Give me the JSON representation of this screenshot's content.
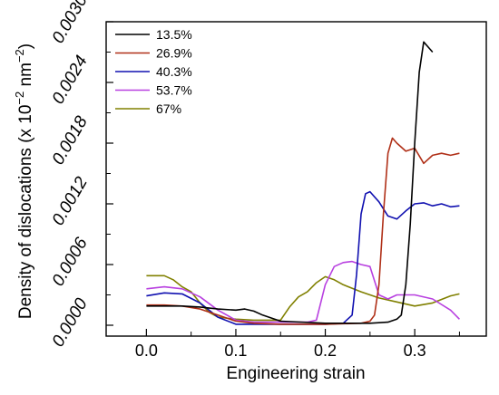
{
  "chart_data": {
    "type": "line",
    "title": "",
    "xlabel": "Engineering strain",
    "ylabel_main": "Density of dislocations (x 10",
    "ylabel_sup1": "−2",
    "ylabel_mid": " nm",
    "ylabel_sup2": "−2",
    "ylabel_end": ")",
    "xlim": [
      -0.045,
      0.38
    ],
    "ylim": [
      0.0,
      0.003
    ],
    "xticks": [
      0.0,
      0.1,
      0.2,
      0.3
    ],
    "xtick_labels": [
      "0.0",
      "0.1",
      "0.2",
      "0.3"
    ],
    "yticks": [
      0.0,
      0.0006,
      0.0012,
      0.0018,
      0.0024,
      0.003
    ],
    "ytick_labels": [
      "0.0000",
      "0.0006",
      "0.0012",
      "0.0018",
      "0.0024",
      "0.0030"
    ],
    "legend_position": "top-left",
    "grid": false,
    "series": [
      {
        "name": "13.5%",
        "color": "#000000",
        "x": [
          0.0,
          0.02,
          0.04,
          0.06,
          0.08,
          0.1,
          0.11,
          0.12,
          0.13,
          0.15,
          0.2,
          0.25,
          0.27,
          0.28,
          0.285,
          0.29,
          0.295,
          0.3,
          0.305,
          0.31,
          0.315,
          0.32
        ],
        "y": [
          0.00019,
          0.00019,
          0.00019,
          0.00018,
          0.00016,
          0.00015,
          0.00016,
          0.00014,
          0.0001,
          4e-05,
          2e-05,
          2e-05,
          3e-05,
          6e-05,
          0.0001,
          0.0004,
          0.001,
          0.0018,
          0.0025,
          0.0028,
          0.00275,
          0.0027
        ]
      },
      {
        "name": "26.9%",
        "color": "#b03018",
        "x": [
          0.0,
          0.02,
          0.04,
          0.06,
          0.08,
          0.1,
          0.12,
          0.15,
          0.2,
          0.24,
          0.25,
          0.255,
          0.26,
          0.265,
          0.27,
          0.275,
          0.28,
          0.29,
          0.3,
          0.31,
          0.32,
          0.33,
          0.34,
          0.35
        ],
        "y": [
          0.0002,
          0.0002,
          0.00019,
          0.00016,
          0.0001,
          4e-05,
          2e-05,
          1e-05,
          1e-05,
          2e-05,
          4e-05,
          0.0001,
          0.0004,
          0.0011,
          0.0017,
          0.00185,
          0.0018,
          0.00172,
          0.00175,
          0.0016,
          0.00168,
          0.0017,
          0.00168,
          0.0017
        ]
      },
      {
        "name": "40.3%",
        "color": "#1010b0",
        "x": [
          0.0,
          0.02,
          0.04,
          0.06,
          0.08,
          0.1,
          0.12,
          0.15,
          0.2,
          0.22,
          0.23,
          0.235,
          0.24,
          0.245,
          0.25,
          0.26,
          0.27,
          0.28,
          0.29,
          0.3,
          0.31,
          0.32,
          0.33,
          0.34,
          0.35
        ],
        "y": [
          0.00029,
          0.00032,
          0.00031,
          0.00022,
          8e-05,
          1e-05,
          1e-05,
          1e-05,
          1e-05,
          2e-05,
          0.0001,
          0.0005,
          0.0011,
          0.0013,
          0.00132,
          0.00122,
          0.00108,
          0.00105,
          0.00113,
          0.0012,
          0.00121,
          0.00118,
          0.0012,
          0.00117,
          0.00118
        ]
      },
      {
        "name": "53.7%",
        "color": "#b840e0",
        "x": [
          0.0,
          0.02,
          0.04,
          0.06,
          0.08,
          0.1,
          0.12,
          0.15,
          0.18,
          0.19,
          0.2,
          0.21,
          0.22,
          0.23,
          0.24,
          0.25,
          0.26,
          0.27,
          0.28,
          0.3,
          0.32,
          0.34,
          0.35
        ],
        "y": [
          0.00036,
          0.00038,
          0.00036,
          0.00028,
          0.00015,
          5e-05,
          3e-05,
          3e-05,
          3e-05,
          5e-05,
          0.0004,
          0.00058,
          0.00062,
          0.00063,
          0.0006,
          0.00058,
          0.0003,
          0.00026,
          0.0003,
          0.0003,
          0.00026,
          0.00015,
          6e-05
        ]
      },
      {
        "name": "67%",
        "color": "#808000",
        "x": [
          0.0,
          0.02,
          0.03,
          0.04,
          0.05,
          0.06,
          0.07,
          0.08,
          0.1,
          0.12,
          0.15,
          0.16,
          0.17,
          0.18,
          0.19,
          0.2,
          0.21,
          0.22,
          0.24,
          0.26,
          0.28,
          0.3,
          0.32,
          0.34,
          0.35
        ],
        "y": [
          0.00049,
          0.00049,
          0.00045,
          0.00038,
          0.00033,
          0.00022,
          0.00013,
          8e-05,
          6e-05,
          5e-05,
          5e-05,
          0.00018,
          0.00028,
          0.00033,
          0.00042,
          0.00048,
          0.00045,
          0.0004,
          0.00033,
          0.00027,
          0.00023,
          0.00019,
          0.00022,
          0.00029,
          0.00031
        ]
      }
    ]
  }
}
